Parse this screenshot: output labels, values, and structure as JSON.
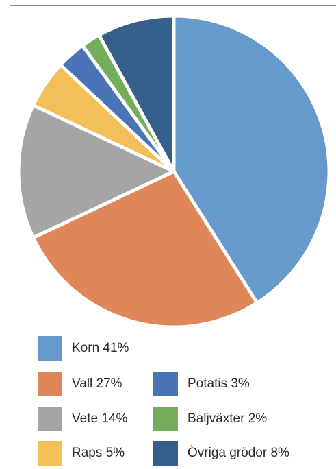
{
  "chart_data": {
    "type": "pie",
    "title": "",
    "slices": [
      {
        "label": "Korn 41%",
        "name": "Korn",
        "value": 41,
        "color": "#6699cc"
      },
      {
        "label": "Vall 27%",
        "name": "Vall",
        "value": 27,
        "color": "#e0875a"
      },
      {
        "label": "Vete 14%",
        "name": "Vete",
        "value": 14,
        "color": "#a5a5a5"
      },
      {
        "label": "Raps 5%",
        "name": "Raps",
        "value": 5,
        "color": "#f3bf58"
      },
      {
        "label": "Potatis 3%",
        "name": "Potatis",
        "value": 3,
        "color": "#4a74b8"
      },
      {
        "label": "Baljväxter 2%",
        "name": "Baljväxter",
        "value": 2,
        "color": "#75ad5c"
      },
      {
        "label": "Övriga grödor 8%",
        "name": "Övriga grödor",
        "value": 8,
        "color": "#35608c"
      }
    ],
    "start": "12 o'clock",
    "direction": "clockwise",
    "legend_position": "bottom",
    "grid": false
  }
}
